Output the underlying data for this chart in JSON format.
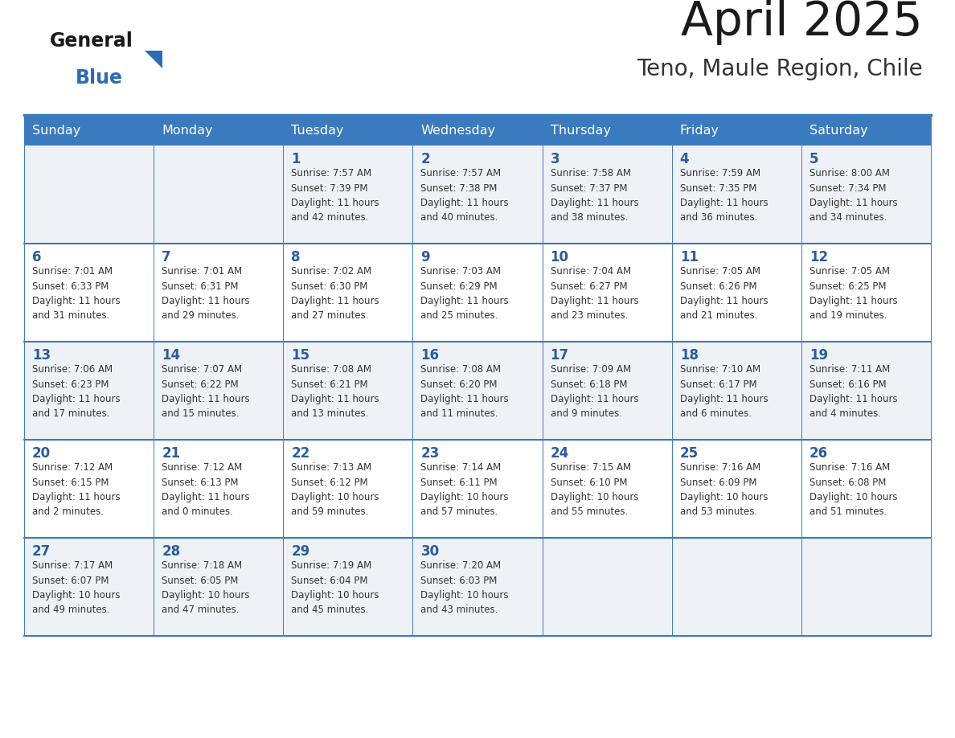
{
  "title": "April 2025",
  "subtitle": "Teno, Maule Region, Chile",
  "header_bg": "#3a7abf",
  "header_text_color": "#ffffff",
  "day_number_color": "#2a5c9e",
  "cell_text_color": "#333333",
  "grid_color": "#3a7abf",
  "row_bg_odd": "#eef2f7",
  "row_bg_even": "#ffffff",
  "days_of_week": [
    "Sunday",
    "Monday",
    "Tuesday",
    "Wednesday",
    "Thursday",
    "Friday",
    "Saturday"
  ],
  "logo_general_color": "#1a1a1a",
  "logo_blue_color": "#2a6db5",
  "logo_triangle_color": "#2a6db5",
  "title_color": "#1a1a1a",
  "subtitle_color": "#333333",
  "calendar": [
    [
      {
        "day": "",
        "info": ""
      },
      {
        "day": "",
        "info": ""
      },
      {
        "day": "1",
        "info": "Sunrise: 7:57 AM\nSunset: 7:39 PM\nDaylight: 11 hours\nand 42 minutes."
      },
      {
        "day": "2",
        "info": "Sunrise: 7:57 AM\nSunset: 7:38 PM\nDaylight: 11 hours\nand 40 minutes."
      },
      {
        "day": "3",
        "info": "Sunrise: 7:58 AM\nSunset: 7:37 PM\nDaylight: 11 hours\nand 38 minutes."
      },
      {
        "day": "4",
        "info": "Sunrise: 7:59 AM\nSunset: 7:35 PM\nDaylight: 11 hours\nand 36 minutes."
      },
      {
        "day": "5",
        "info": "Sunrise: 8:00 AM\nSunset: 7:34 PM\nDaylight: 11 hours\nand 34 minutes."
      }
    ],
    [
      {
        "day": "6",
        "info": "Sunrise: 7:01 AM\nSunset: 6:33 PM\nDaylight: 11 hours\nand 31 minutes."
      },
      {
        "day": "7",
        "info": "Sunrise: 7:01 AM\nSunset: 6:31 PM\nDaylight: 11 hours\nand 29 minutes."
      },
      {
        "day": "8",
        "info": "Sunrise: 7:02 AM\nSunset: 6:30 PM\nDaylight: 11 hours\nand 27 minutes."
      },
      {
        "day": "9",
        "info": "Sunrise: 7:03 AM\nSunset: 6:29 PM\nDaylight: 11 hours\nand 25 minutes."
      },
      {
        "day": "10",
        "info": "Sunrise: 7:04 AM\nSunset: 6:27 PM\nDaylight: 11 hours\nand 23 minutes."
      },
      {
        "day": "11",
        "info": "Sunrise: 7:05 AM\nSunset: 6:26 PM\nDaylight: 11 hours\nand 21 minutes."
      },
      {
        "day": "12",
        "info": "Sunrise: 7:05 AM\nSunset: 6:25 PM\nDaylight: 11 hours\nand 19 minutes."
      }
    ],
    [
      {
        "day": "13",
        "info": "Sunrise: 7:06 AM\nSunset: 6:23 PM\nDaylight: 11 hours\nand 17 minutes."
      },
      {
        "day": "14",
        "info": "Sunrise: 7:07 AM\nSunset: 6:22 PM\nDaylight: 11 hours\nand 15 minutes."
      },
      {
        "day": "15",
        "info": "Sunrise: 7:08 AM\nSunset: 6:21 PM\nDaylight: 11 hours\nand 13 minutes."
      },
      {
        "day": "16",
        "info": "Sunrise: 7:08 AM\nSunset: 6:20 PM\nDaylight: 11 hours\nand 11 minutes."
      },
      {
        "day": "17",
        "info": "Sunrise: 7:09 AM\nSunset: 6:18 PM\nDaylight: 11 hours\nand 9 minutes."
      },
      {
        "day": "18",
        "info": "Sunrise: 7:10 AM\nSunset: 6:17 PM\nDaylight: 11 hours\nand 6 minutes."
      },
      {
        "day": "19",
        "info": "Sunrise: 7:11 AM\nSunset: 6:16 PM\nDaylight: 11 hours\nand 4 minutes."
      }
    ],
    [
      {
        "day": "20",
        "info": "Sunrise: 7:12 AM\nSunset: 6:15 PM\nDaylight: 11 hours\nand 2 minutes."
      },
      {
        "day": "21",
        "info": "Sunrise: 7:12 AM\nSunset: 6:13 PM\nDaylight: 11 hours\nand 0 minutes."
      },
      {
        "day": "22",
        "info": "Sunrise: 7:13 AM\nSunset: 6:12 PM\nDaylight: 10 hours\nand 59 minutes."
      },
      {
        "day": "23",
        "info": "Sunrise: 7:14 AM\nSunset: 6:11 PM\nDaylight: 10 hours\nand 57 minutes."
      },
      {
        "day": "24",
        "info": "Sunrise: 7:15 AM\nSunset: 6:10 PM\nDaylight: 10 hours\nand 55 minutes."
      },
      {
        "day": "25",
        "info": "Sunrise: 7:16 AM\nSunset: 6:09 PM\nDaylight: 10 hours\nand 53 minutes."
      },
      {
        "day": "26",
        "info": "Sunrise: 7:16 AM\nSunset: 6:08 PM\nDaylight: 10 hours\nand 51 minutes."
      }
    ],
    [
      {
        "day": "27",
        "info": "Sunrise: 7:17 AM\nSunset: 6:07 PM\nDaylight: 10 hours\nand 49 minutes."
      },
      {
        "day": "28",
        "info": "Sunrise: 7:18 AM\nSunset: 6:05 PM\nDaylight: 10 hours\nand 47 minutes."
      },
      {
        "day": "29",
        "info": "Sunrise: 7:19 AM\nSunset: 6:04 PM\nDaylight: 10 hours\nand 45 minutes."
      },
      {
        "day": "30",
        "info": "Sunrise: 7:20 AM\nSunset: 6:03 PM\nDaylight: 10 hours\nand 43 minutes."
      },
      {
        "day": "",
        "info": ""
      },
      {
        "day": "",
        "info": ""
      },
      {
        "day": "",
        "info": ""
      }
    ]
  ]
}
